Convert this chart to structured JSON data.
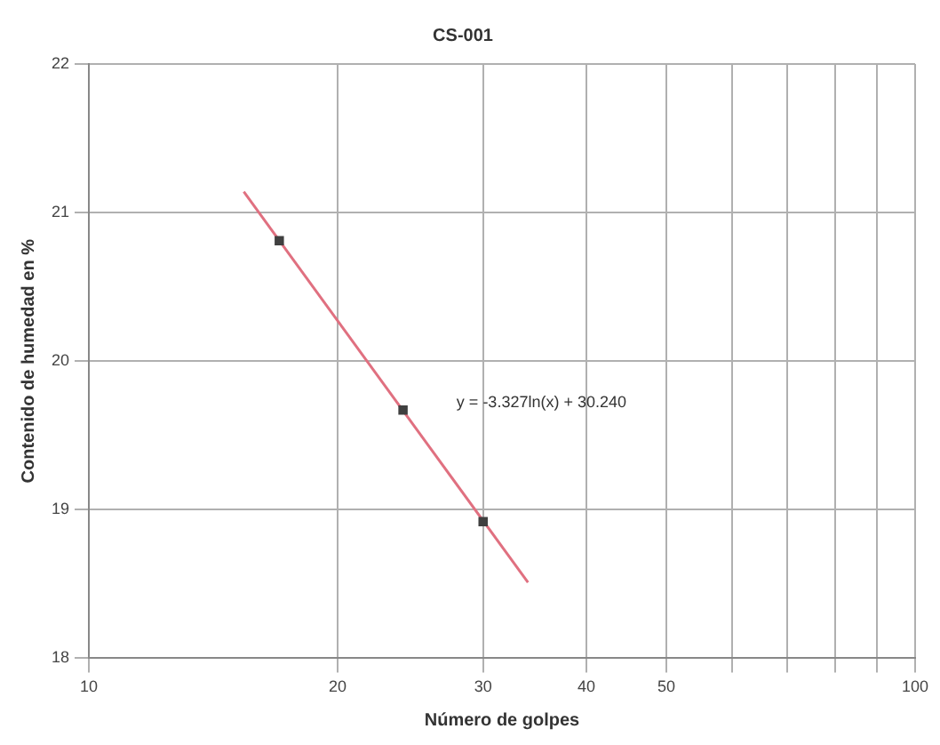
{
  "chart_data": {
    "type": "scatter",
    "title": "CS-001",
    "xlabel": "Número de golpes",
    "ylabel": "Contenido de humedad en %",
    "annotations": [
      "y = -3.327ln(x) + 30.240"
    ],
    "series": [
      {
        "type": "scatter",
        "color": "#404040",
        "x": [
          17,
          24,
          30
        ],
        "values": [
          20.81,
          19.67,
          18.92
        ],
        "marker": "square"
      },
      {
        "type": "line",
        "color": "#e07080",
        "x": [
          15.4,
          34
        ],
        "values": [
          21.14,
          18.51
        ],
        "marker": "none"
      }
    ],
    "log": "x",
    "xlim": [
      10,
      100
    ],
    "xticks": [
      10,
      20,
      30,
      40,
      50,
      {
        "value": 60,
        "label": null
      },
      {
        "value": 70,
        "label": null
      },
      {
        "value": 80,
        "label": null
      },
      {
        "value": 90,
        "label": null
      },
      100
    ],
    "ylim": [
      18,
      22
    ],
    "yticks": [
      18,
      19,
      20,
      21,
      22
    ],
    "grid": true,
    "legend": false
  }
}
